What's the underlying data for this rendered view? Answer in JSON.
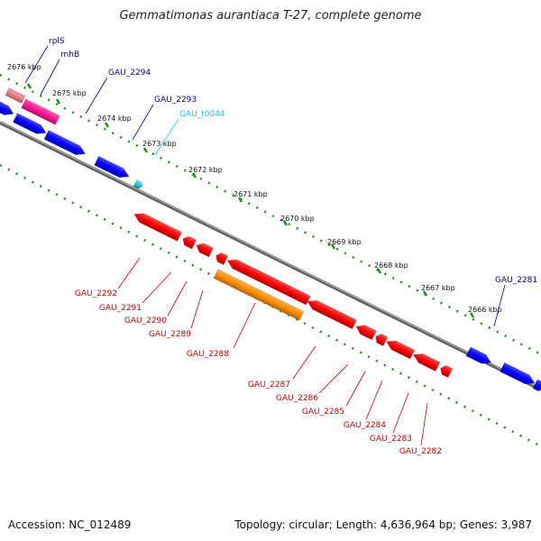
{
  "title": "Gemmatimonas aurantiaca T-27, complete genome",
  "footer": {
    "accession": "Accession: NC_012489",
    "stats": "Topology: circular; Length: 4,636,964 bp; Genes: 3,987"
  },
  "colors": {
    "backbone": "#808080",
    "tick": "#228b22",
    "cds_forward": "#0000ff",
    "cds_reverse": "#ff0000",
    "rrna": "#ff1493",
    "rrna_light": "#ec7f86",
    "trna": "#1ec8e6",
    "misc": "#ff8c00",
    "label_forward": "#00008b",
    "label_reverse": "#cc0000",
    "label_trna": "#1ec8e6"
  },
  "ticks": [
    {
      "label": "2676 kbp"
    },
    {
      "label": "2675 kbp"
    },
    {
      "label": "2674 kbp"
    },
    {
      "label": "2673 kbp"
    },
    {
      "label": "2672 kbp"
    },
    {
      "label": "2671 kbp"
    },
    {
      "label": "2670 kbp"
    },
    {
      "label": "2669 kbp"
    },
    {
      "label": "2668 kbp"
    },
    {
      "label": "2667 kbp"
    },
    {
      "label": "2666 kbp"
    }
  ],
  "forward_labels": [
    {
      "name": "rplS",
      "color": "label_forward"
    },
    {
      "name": "rnhB",
      "color": "label_forward"
    },
    {
      "name": "GAU_2294",
      "color": "label_forward"
    },
    {
      "name": "GAU_2293",
      "color": "label_forward"
    },
    {
      "name": "GAU_t0044",
      "color": "label_trna"
    },
    {
      "name": "GAU_2281",
      "color": "label_forward"
    }
  ],
  "reverse_labels": [
    {
      "name": "GAU_2292"
    },
    {
      "name": "GAU_2291"
    },
    {
      "name": "GAU_2290"
    },
    {
      "name": "GAU_2289"
    },
    {
      "name": "GAU_2288"
    },
    {
      "name": "GAU_2287"
    },
    {
      "name": "GAU_2286"
    },
    {
      "name": "GAU_2285"
    },
    {
      "name": "GAU_2284"
    },
    {
      "name": "GAU_2283"
    },
    {
      "name": "GAU_2282"
    }
  ]
}
